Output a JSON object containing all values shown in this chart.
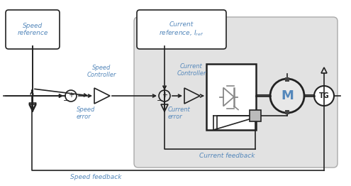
{
  "bg_color": "#ffffff",
  "gray_bg": "#e2e2e2",
  "text_color": "#5588bb",
  "line_color": "#222222",
  "box_color": "#ffffff",
  "labels": {
    "speed_ref": "Speed\nreference",
    "speed_controller": "Speed\nController",
    "speed_error": "Speed\nerror",
    "current_ref": "Current\nreference, $I_{ref}$",
    "current_controller": "Current\nController",
    "current_error": "Current\nerror",
    "current_feedback": "Current feedback",
    "speed_feedback": "Speed feedback",
    "motor": "M",
    "tg": "TG"
  },
  "thyristor_color": "#888888",
  "motor_face": "#e8e8e8",
  "sensor_face": "#bbbbbb"
}
